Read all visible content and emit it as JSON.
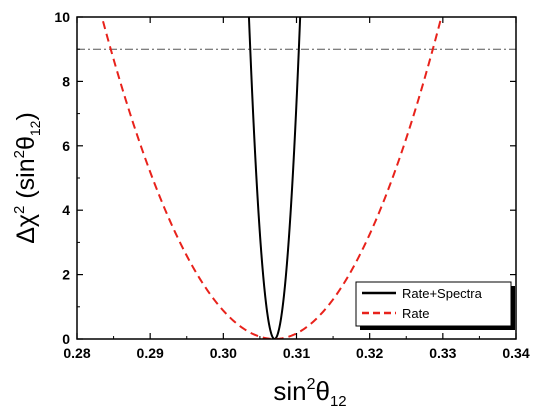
{
  "chart_data": {
    "type": "line",
    "xlabel": {
      "base": "sin",
      "sup": "2",
      "greek": "θ",
      "sub": "12"
    },
    "ylabel": {
      "base": "Δχ",
      "sup": "2",
      "paren_open": " (sin",
      "paren_sup": "2",
      "greek": "θ",
      "sub": "12",
      "paren_close": ")"
    },
    "xlim": [
      0.28,
      0.34
    ],
    "ylim": [
      0,
      10
    ],
    "xticks": [
      "0.28",
      "0.29",
      "0.30",
      "0.31",
      "0.32",
      "0.33",
      "0.34"
    ],
    "yticks": [
      "0",
      "2",
      "4",
      "6",
      "8",
      "10"
    ],
    "reference_line": {
      "y": 9,
      "style": "dash-dot",
      "color": "#555555"
    },
    "series": [
      {
        "name": "Rate+Spectra",
        "color": "#000000",
        "style": "solid",
        "shape": "parabola",
        "minimum_x": 0.307,
        "x_at_y10": [
          0.3035,
          0.3105
        ]
      },
      {
        "name": "Rate",
        "color": "#e8221b",
        "style": "dashed",
        "shape": "parabola",
        "minimum_x": 0.307,
        "x_at_y10": [
          0.2834,
          0.3298
        ]
      }
    ],
    "legend": {
      "placement": "bottom-right",
      "shadow": true
    }
  }
}
